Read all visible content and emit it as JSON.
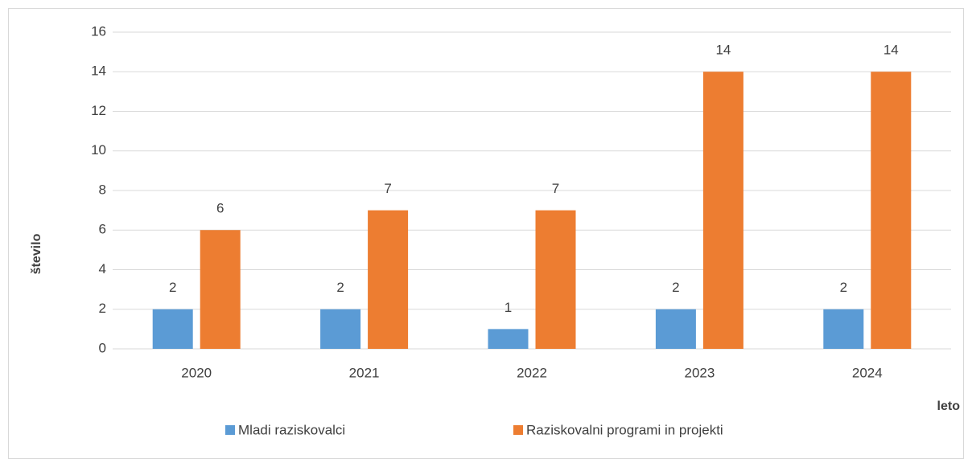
{
  "chart_data": {
    "type": "bar",
    "categories": [
      "2020",
      "2021",
      "2022",
      "2023",
      "2024"
    ],
    "series": [
      {
        "name": "Mladi raziskovalci",
        "color": "#5b9bd5",
        "values": [
          2,
          2,
          1,
          2,
          2
        ]
      },
      {
        "name": "Raziskovalni programi in projekti",
        "color": "#ed7d31",
        "values": [
          6,
          7,
          7,
          14,
          14
        ]
      }
    ],
    "ylim": [
      0,
      16
    ],
    "yticks": [
      0,
      2,
      4,
      6,
      8,
      10,
      12,
      14,
      16
    ],
    "ylabel": "število",
    "xlabel": "leto",
    "grid": true,
    "legend": "bottom",
    "data_labels": true
  }
}
